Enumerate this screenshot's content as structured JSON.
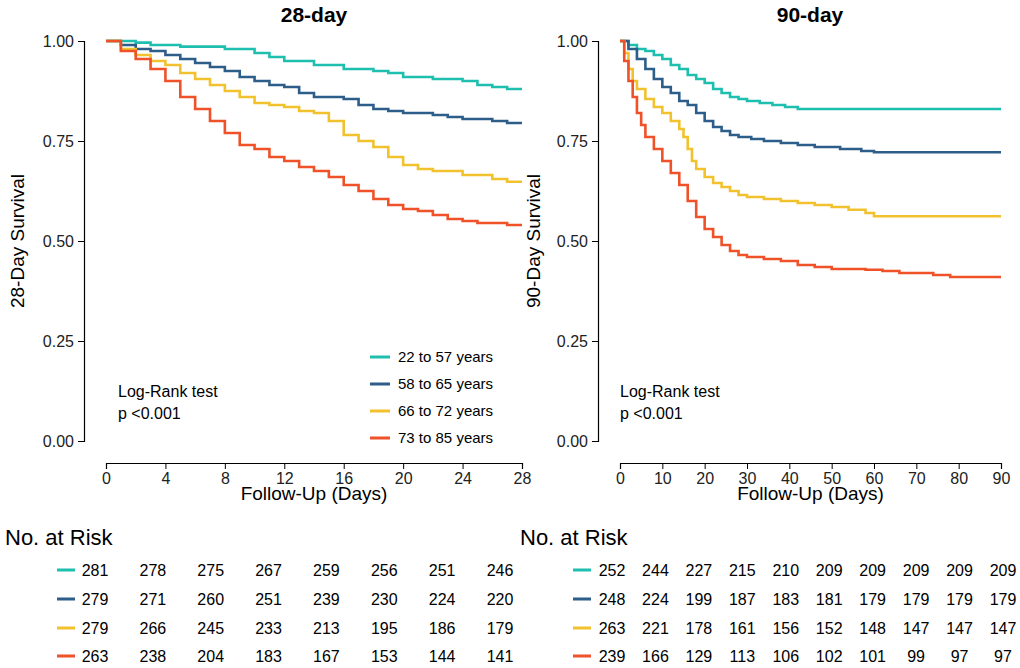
{
  "chart_data": [
    {
      "type": "line",
      "line_style": "step",
      "title": "28-day",
      "x_label": "Follow-Up (Days)",
      "y_label": "28-Day Survival",
      "xlim": [
        0,
        28
      ],
      "xticks": [
        0,
        4,
        8,
        12,
        16,
        20,
        24,
        28
      ],
      "ylim": [
        0,
        1
      ],
      "yticks": [
        {
          "value": 0,
          "label": "0.00"
        },
        {
          "value": 0.25,
          "label": "0.25"
        },
        {
          "value": 0.5,
          "label": "0.50"
        },
        {
          "value": 0.75,
          "label": "0.75"
        },
        {
          "value": 1,
          "label": "1.00"
        }
      ],
      "legend": "bottom right",
      "annotations": [
        "Log-Rank test",
        "p <0.001"
      ],
      "at_risk_title": "No. at Risk",
      "series": [
        {
          "name": "22 to 57 years",
          "color": "#1fbfb0",
          "x": [
            0,
            2,
            3,
            5,
            8,
            10,
            11,
            12,
            14,
            16,
            18,
            19,
            20,
            22,
            24,
            25,
            26,
            27,
            28
          ],
          "values": [
            1,
            0.996,
            0.99,
            0.986,
            0.98,
            0.97,
            0.96,
            0.95,
            0.94,
            0.93,
            0.925,
            0.92,
            0.91,
            0.905,
            0.9,
            0.89,
            0.885,
            0.88,
            0.88
          ],
          "at_risk": [
            281,
            278,
            275,
            267,
            259,
            256,
            251,
            246
          ]
        },
        {
          "name": "58 to 65 years",
          "color": "#2d5d89",
          "x": [
            0,
            1,
            2,
            3,
            4,
            5,
            6,
            7,
            8,
            9,
            10,
            11,
            12,
            13,
            14,
            16,
            17,
            18,
            19,
            20,
            22,
            23,
            24,
            26,
            27,
            28
          ],
          "values": [
            1,
            0.99,
            0.98,
            0.975,
            0.965,
            0.955,
            0.945,
            0.935,
            0.925,
            0.91,
            0.9,
            0.89,
            0.885,
            0.87,
            0.86,
            0.855,
            0.84,
            0.83,
            0.825,
            0.82,
            0.815,
            0.81,
            0.805,
            0.8,
            0.795,
            0.795
          ],
          "at_risk": [
            279,
            271,
            260,
            251,
            239,
            230,
            224,
            220
          ]
        },
        {
          "name": "66 to 72 years",
          "color": "#f2c12e",
          "x": [
            0,
            1,
            2,
            3,
            4,
            5,
            6,
            7,
            8,
            9,
            10,
            11,
            12,
            13,
            14,
            15,
            16,
            17,
            18,
            19,
            20,
            21,
            22,
            24,
            26,
            27,
            28
          ],
          "values": [
            1,
            0.98,
            0.965,
            0.95,
            0.94,
            0.92,
            0.905,
            0.89,
            0.875,
            0.86,
            0.845,
            0.84,
            0.835,
            0.825,
            0.82,
            0.8,
            0.765,
            0.75,
            0.735,
            0.71,
            0.69,
            0.68,
            0.675,
            0.665,
            0.655,
            0.648,
            0.648
          ],
          "at_risk": [
            279,
            266,
            245,
            233,
            213,
            195,
            186,
            179
          ]
        },
        {
          "name": "73 to 85 years",
          "color": "#ef5129",
          "x": [
            0,
            1,
            2,
            3,
            4,
            5,
            6,
            7,
            8,
            9,
            10,
            11,
            12,
            13,
            14,
            15,
            16,
            17,
            18,
            19,
            20,
            21,
            22,
            23,
            24,
            25,
            27,
            28
          ],
          "values": [
            1,
            0.975,
            0.955,
            0.93,
            0.9,
            0.86,
            0.83,
            0.8,
            0.77,
            0.74,
            0.73,
            0.71,
            0.7,
            0.685,
            0.675,
            0.66,
            0.64,
            0.625,
            0.605,
            0.59,
            0.58,
            0.575,
            0.565,
            0.555,
            0.55,
            0.545,
            0.54,
            0.54
          ],
          "at_risk": [
            263,
            238,
            204,
            183,
            167,
            153,
            144,
            141
          ]
        }
      ]
    },
    {
      "type": "line",
      "line_style": "step",
      "title": "90-day",
      "x_label": "Follow-Up (Days)",
      "y_label": "90-Day Survival",
      "xlim": [
        0,
        90
      ],
      "xticks": [
        0,
        10,
        20,
        30,
        40,
        50,
        60,
        70,
        80,
        90
      ],
      "ylim": [
        0,
        1
      ],
      "yticks": [
        {
          "value": 0,
          "label": "0.00"
        },
        {
          "value": 0.25,
          "label": "0.25"
        },
        {
          "value": 0.5,
          "label": "0.50"
        },
        {
          "value": 0.75,
          "label": "0.75"
        },
        {
          "value": 1,
          "label": "1.00"
        }
      ],
      "annotations": [
        "Log-Rank test",
        "p <0.001"
      ],
      "at_risk_title": "No. at Risk",
      "series": [
        {
          "color": "#1fbfb0",
          "x": [
            0,
            2,
            4,
            6,
            8,
            10,
            12,
            14,
            16,
            18,
            20,
            22,
            24,
            26,
            28,
            30,
            33,
            36,
            39,
            42,
            90
          ],
          "values": [
            1,
            0.99,
            0.98,
            0.975,
            0.965,
            0.955,
            0.94,
            0.93,
            0.915,
            0.905,
            0.895,
            0.88,
            0.87,
            0.86,
            0.855,
            0.85,
            0.845,
            0.84,
            0.835,
            0.83,
            0.83
          ],
          "at_risk": [
            252,
            244,
            227,
            215,
            210,
            209,
            209,
            209,
            209,
            209
          ]
        },
        {
          "color": "#2d5d89",
          "x": [
            0,
            2,
            4,
            6,
            8,
            10,
            12,
            14,
            16,
            18,
            20,
            22,
            24,
            26,
            28,
            31,
            34,
            38,
            42,
            46,
            52,
            57,
            60,
            90
          ],
          "values": [
            1,
            0.98,
            0.955,
            0.93,
            0.905,
            0.885,
            0.87,
            0.85,
            0.84,
            0.82,
            0.8,
            0.785,
            0.775,
            0.765,
            0.76,
            0.755,
            0.75,
            0.745,
            0.74,
            0.735,
            0.73,
            0.725,
            0.722,
            0.722
          ],
          "at_risk": [
            248,
            224,
            199,
            187,
            183,
            181,
            179,
            179,
            179,
            179
          ]
        },
        {
          "color": "#f2c12e",
          "x": [
            0,
            1,
            2,
            3,
            4,
            6,
            8,
            10,
            12,
            14,
            15,
            16,
            17,
            18,
            20,
            22,
            24,
            26,
            28,
            30,
            34,
            38,
            42,
            46,
            50,
            54,
            58,
            60,
            90
          ],
          "values": [
            1,
            0.97,
            0.93,
            0.9,
            0.88,
            0.855,
            0.835,
            0.82,
            0.8,
            0.78,
            0.76,
            0.73,
            0.7,
            0.68,
            0.66,
            0.645,
            0.635,
            0.625,
            0.615,
            0.61,
            0.605,
            0.6,
            0.595,
            0.59,
            0.585,
            0.578,
            0.57,
            0.562,
            0.562
          ],
          "at_risk": [
            263,
            221,
            178,
            161,
            156,
            152,
            148,
            147,
            147,
            147
          ]
        },
        {
          "color": "#ef5129",
          "x": [
            0,
            1,
            2,
            3,
            4,
            5,
            6,
            8,
            10,
            12,
            14,
            16,
            18,
            20,
            22,
            24,
            26,
            28,
            30,
            34,
            38,
            42,
            46,
            50,
            58,
            62,
            66,
            74,
            78,
            90
          ],
          "values": [
            1,
            0.95,
            0.9,
            0.86,
            0.82,
            0.79,
            0.76,
            0.73,
            0.7,
            0.67,
            0.64,
            0.6,
            0.56,
            0.53,
            0.51,
            0.49,
            0.475,
            0.465,
            0.46,
            0.455,
            0.45,
            0.44,
            0.435,
            0.43,
            0.428,
            0.425,
            0.42,
            0.415,
            0.41,
            0.41
          ],
          "at_risk": [
            239,
            166,
            129,
            113,
            106,
            102,
            101,
            99,
            97,
            97
          ]
        }
      ]
    }
  ]
}
